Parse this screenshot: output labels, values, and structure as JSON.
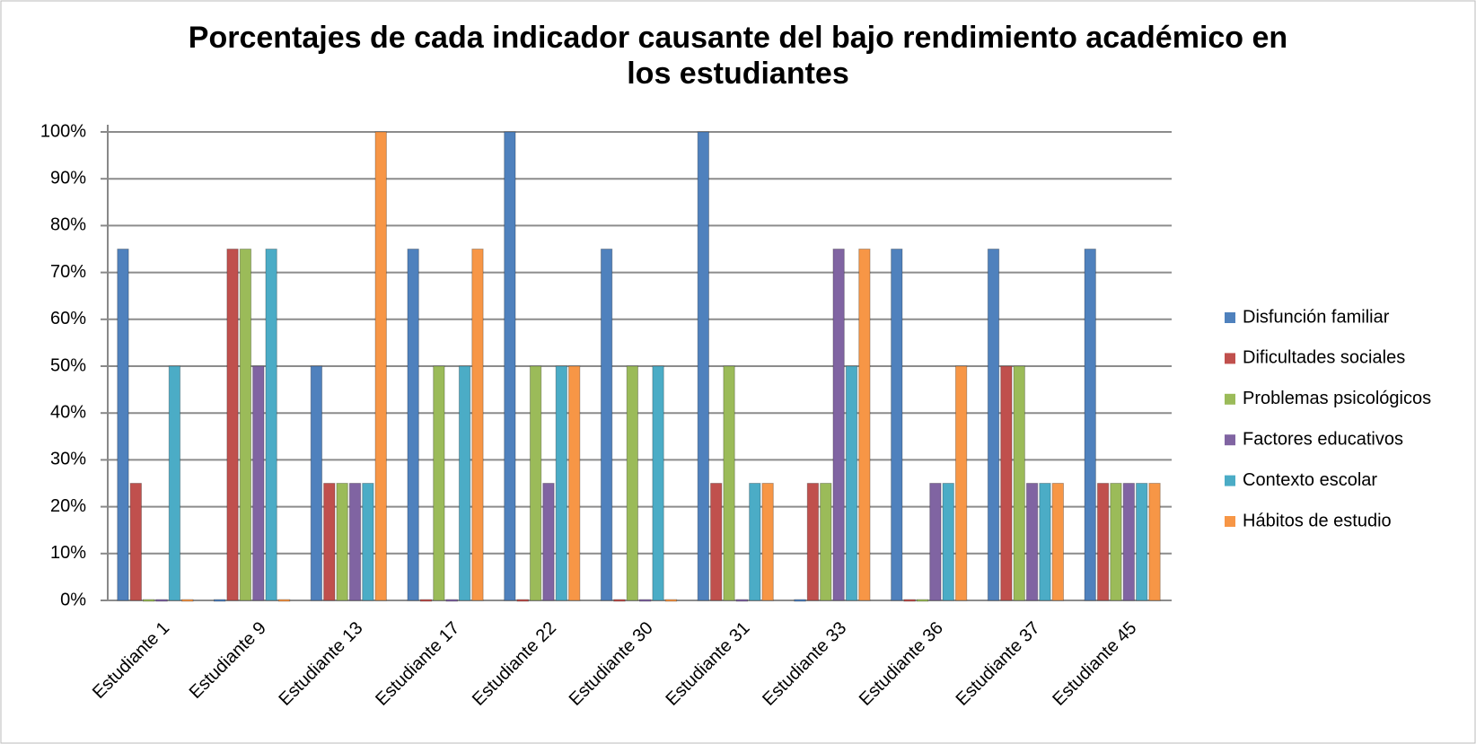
{
  "chart_data": {
    "type": "bar",
    "title": "Porcentajes de cada indicador causante del bajo rendimiento académico en los estudiantes",
    "categories": [
      "Estudiante 1",
      "Estudiante 9",
      "Estudiante 13",
      "Estudiante 17",
      "Estudiante 22",
      "Estudiante 30",
      "Estudiante 31",
      "Estudiante 33",
      "Estudiante 36",
      "Estudiante 37",
      "Estudiante 45"
    ],
    "series": [
      {
        "name": "Disfunción familiar",
        "color": "#4f81bd",
        "values": [
          75,
          0,
          50,
          75,
          100,
          75,
          100,
          0,
          75,
          75,
          75
        ]
      },
      {
        "name": "Dificultades sociales",
        "color": "#c0504d",
        "values": [
          25,
          75,
          25,
          0,
          0,
          0,
          25,
          25,
          0,
          50,
          25
        ]
      },
      {
        "name": "Problemas psicológicos",
        "color": "#9bbb59",
        "values": [
          0,
          75,
          25,
          50,
          50,
          50,
          50,
          25,
          0,
          50,
          25
        ]
      },
      {
        "name": "Factores educativos",
        "color": "#8064a2",
        "values": [
          0,
          50,
          25,
          0,
          25,
          0,
          0,
          75,
          25,
          25,
          25
        ]
      },
      {
        "name": "Contexto escolar",
        "color": "#4bacc6",
        "values": [
          50,
          75,
          25,
          50,
          50,
          50,
          25,
          50,
          25,
          25,
          25
        ]
      },
      {
        "name": "Hábitos de estudio",
        "color": "#f79646",
        "values": [
          0,
          0,
          100,
          75,
          50,
          0,
          25,
          75,
          50,
          25,
          25
        ]
      }
    ],
    "ylim": [
      0,
      100
    ],
    "yticks": [
      {
        "value": 0,
        "label": "0%"
      },
      {
        "value": 10,
        "label": "10%"
      },
      {
        "value": 20,
        "label": "20%"
      },
      {
        "value": 30,
        "label": "30%"
      },
      {
        "value": 40,
        "label": "40%"
      },
      {
        "value": 50,
        "label": "50%"
      },
      {
        "value": 60,
        "label": "60%"
      },
      {
        "value": 70,
        "label": "70%"
      },
      {
        "value": 80,
        "label": "80%"
      },
      {
        "value": 90,
        "label": "90%"
      },
      {
        "value": 100,
        "label": "100%"
      }
    ],
    "grid": true,
    "legend": "right"
  }
}
